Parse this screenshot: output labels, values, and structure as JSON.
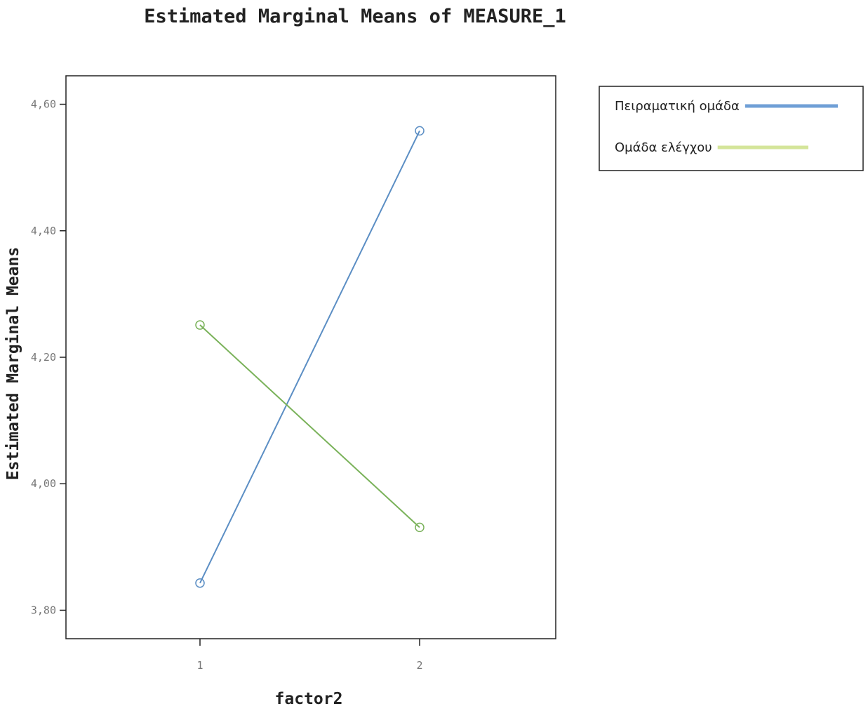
{
  "chart_data": {
    "type": "line",
    "title": "Estimated Marginal Means of MEASURE_1",
    "xlabel": "factor2",
    "ylabel": "Estimated Marginal Means",
    "categories": [
      "1",
      "2"
    ],
    "y_ticks": [
      "3,80",
      "4,00",
      "4,20",
      "4,40",
      "4,60"
    ],
    "y_tick_values": [
      3.8,
      4.0,
      4.2,
      4.4,
      4.6
    ],
    "ylim": [
      3.755,
      4.645
    ],
    "grid": false,
    "legend_position": "top-right, outside plot",
    "series": [
      {
        "name": "Πειραματική ομάδα",
        "values": [
          3.843,
          4.558
        ],
        "color": "#5b8ec4",
        "legend_color": "#6f9fd6"
      },
      {
        "name": "Ομάδα ελέγχου",
        "values": [
          4.251,
          3.931
        ],
        "color": "#7ab25a",
        "legend_color": "#d4e59a"
      }
    ]
  }
}
